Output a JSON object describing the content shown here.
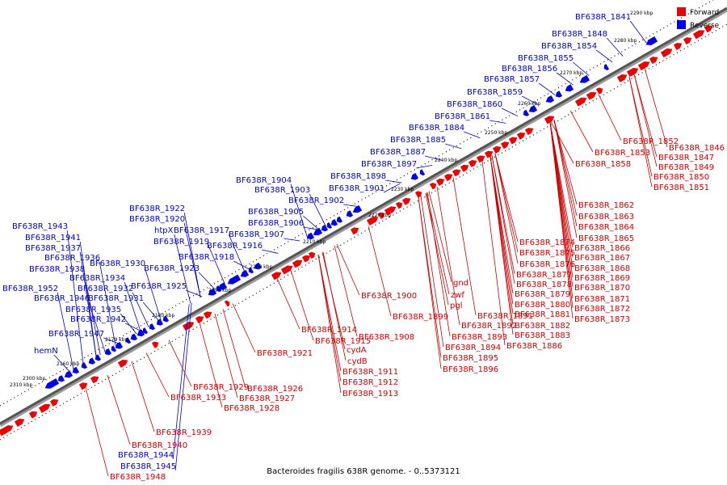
{
  "caption": "Bacteroides fragilis 638R genome. - 0..5373121",
  "legend": [
    {
      "label": "Forward",
      "color": "#ee0000"
    },
    {
      "label": "Reverse",
      "color": "#0000ee"
    }
  ],
  "colors": {
    "forward": "#ee0000",
    "reverse": "#0000ee",
    "backbone": "#555555",
    "label_forward": "#cc0000",
    "label_reverse": "#0000cc"
  },
  "ticks": [
    "2160 kbp",
    "2170 kbp",
    "2180 kbp",
    "2190 kbp",
    "2200 kbp",
    "2210 kbp",
    "2220 kbp",
    "2230 kbp",
    "2240 kbp",
    "2250 kbp",
    "2260 kbp",
    "2270 kbp",
    "2280 kbp",
    "2290 kbp",
    "2300 kbp",
    "2310 kbp"
  ],
  "reverse_labels": [
    "BF638R_1841",
    "BF638R_1848",
    "BF638R_1854",
    "BF638R_1855",
    "BF638R_1856",
    "BF638R_1857",
    "BF638R_1859",
    "BF638R_1860",
    "BF638R_1861",
    "BF638R_1884",
    "BF638R_1885",
    "BF638R_1887",
    "BF638R_1897",
    "BF638R_1898",
    "BF638R_1901",
    "BF638R_1904",
    "BF638R_1903",
    "BF638R_1902",
    "BF638R_1905",
    "BF638R_1906",
    "BF638R_1907",
    "BF638R_1922",
    "BF638R_1920",
    "htpX",
    "BF638R_1917",
    "BF638R_1919",
    "BF638R_1916",
    "BF638R_1918",
    "BF638R_1943",
    "BF638R_1941",
    "BF638R_1937",
    "BF638R_1936",
    "BF638R_1938",
    "BF638R_1930",
    "BF638R_1923",
    "BF638R_1934",
    "BF638R_1952",
    "BF638R_1932",
    "BF638R_1925",
    "BF638R_1946",
    "BF638R_1931",
    "BF638R_1935",
    "BF638R_1942",
    "BF638R_1947",
    "hemN",
    "BF638R_1944",
    "BF638R_1945"
  ],
  "forward_labels": [
    "BF638R_1846",
    "BF638R_1852",
    "BF638R_1847",
    "BF638R_1853",
    "BF638R_1849",
    "BF638R_1858",
    "BF638R_1850",
    "BF638R_1851",
    "BF638R_1862",
    "BF638R_1863",
    "BF638R_1864",
    "BF638R_1865",
    "BF638R_1874",
    "BF638R_1866",
    "BF638R_1875",
    "BF638R_1867",
    "BF638R_1876",
    "BF638R_1868",
    "BF638R_1877",
    "BF638R_1869",
    "gnd",
    "BF638R_1878",
    "BF638R_1870",
    "zwf",
    "BF638R_1879",
    "BF638R_1900",
    "BF638R_1871",
    "pgl",
    "BF638R_1880",
    "BF638R_1872",
    "BF638R_1899",
    "BF638R_1891",
    "BF638R_1881",
    "BF638R_1873",
    "BF638R_1892",
    "BF638R_1882",
    "BF638R_1914",
    "BF638R_1908",
    "BF638R_1893",
    "BF638R_1883",
    "BF638R_1915",
    "BF638R_1894",
    "BF638R_1886",
    "cydA",
    "BF638R_1921",
    "BF638R_1895",
    "cydB",
    "BF638R_1896",
    "BF638R_1911",
    "BF638R_1912",
    "BF638R_1926",
    "BF638R_1929",
    "BF638R_1913",
    "BF638R_1927",
    "BF638R_1933",
    "BF638R_1928",
    "BF638R_1939",
    "BF638R_1940",
    "BF638R_1948"
  ]
}
